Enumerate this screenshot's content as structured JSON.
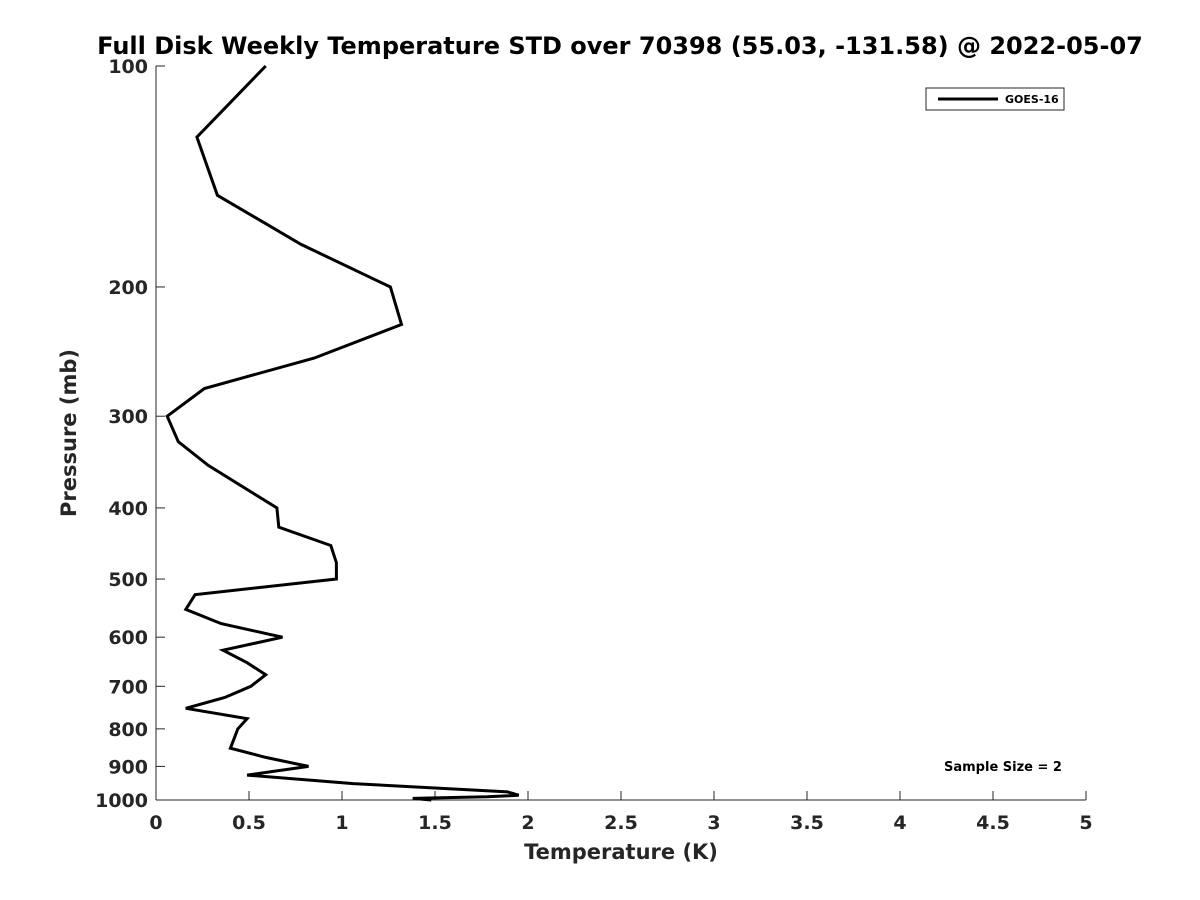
{
  "chart_data": {
    "type": "line",
    "title": "Full Disk Weekly Temperature STD over 70398 (55.03, -131.58) @ 2022-05-07",
    "xlabel": "Temperature (K)",
    "ylabel": "Pressure (mb)",
    "xlim": [
      0,
      5
    ],
    "ylim": [
      100,
      1000
    ],
    "y_scale": "log",
    "y_reversed": true,
    "x_ticks": [
      "0",
      "0.5",
      "1",
      "1.5",
      "2",
      "2.5",
      "3",
      "3.5",
      "4",
      "4.5",
      "5"
    ],
    "y_ticks": [
      "100",
      "200",
      "300",
      "400",
      "500",
      "600",
      "700",
      "800",
      "900",
      "1000"
    ],
    "legend_position": "top-right",
    "grid": false,
    "annotation": "Sample Size = 2",
    "series": [
      {
        "name": "GOES-16",
        "color": "#000000",
        "points": [
          {
            "x": 0.59,
            "y": 100
          },
          {
            "x": 0.22,
            "y": 125
          },
          {
            "x": 0.33,
            "y": 150
          },
          {
            "x": 0.78,
            "y": 175
          },
          {
            "x": 1.26,
            "y": 200
          },
          {
            "x": 1.32,
            "y": 225
          },
          {
            "x": 0.85,
            "y": 250
          },
          {
            "x": 0.26,
            "y": 275
          },
          {
            "x": 0.06,
            "y": 300
          },
          {
            "x": 0.12,
            "y": 325
          },
          {
            "x": 0.28,
            "y": 350
          },
          {
            "x": 0.65,
            "y": 400
          },
          {
            "x": 0.66,
            "y": 425
          },
          {
            "x": 0.94,
            "y": 450
          },
          {
            "x": 0.97,
            "y": 475
          },
          {
            "x": 0.97,
            "y": 500
          },
          {
            "x": 0.21,
            "y": 525
          },
          {
            "x": 0.16,
            "y": 550
          },
          {
            "x": 0.35,
            "y": 575
          },
          {
            "x": 0.68,
            "y": 600
          },
          {
            "x": 0.36,
            "y": 625
          },
          {
            "x": 0.49,
            "y": 650
          },
          {
            "x": 0.59,
            "y": 675
          },
          {
            "x": 0.51,
            "y": 700
          },
          {
            "x": 0.37,
            "y": 725
          },
          {
            "x": 0.16,
            "y": 750
          },
          {
            "x": 0.49,
            "y": 775
          },
          {
            "x": 0.44,
            "y": 800
          },
          {
            "x": 0.42,
            "y": 825
          },
          {
            "x": 0.4,
            "y": 850
          },
          {
            "x": 0.59,
            "y": 875
          },
          {
            "x": 0.82,
            "y": 900
          },
          {
            "x": 0.49,
            "y": 925
          },
          {
            "x": 1.06,
            "y": 950
          },
          {
            "x": 1.89,
            "y": 975
          },
          {
            "x": 1.95,
            "y": 985
          },
          {
            "x": 1.78,
            "y": 990
          },
          {
            "x": 1.38,
            "y": 995
          },
          {
            "x": 1.48,
            "y": 1000
          }
        ]
      }
    ]
  }
}
